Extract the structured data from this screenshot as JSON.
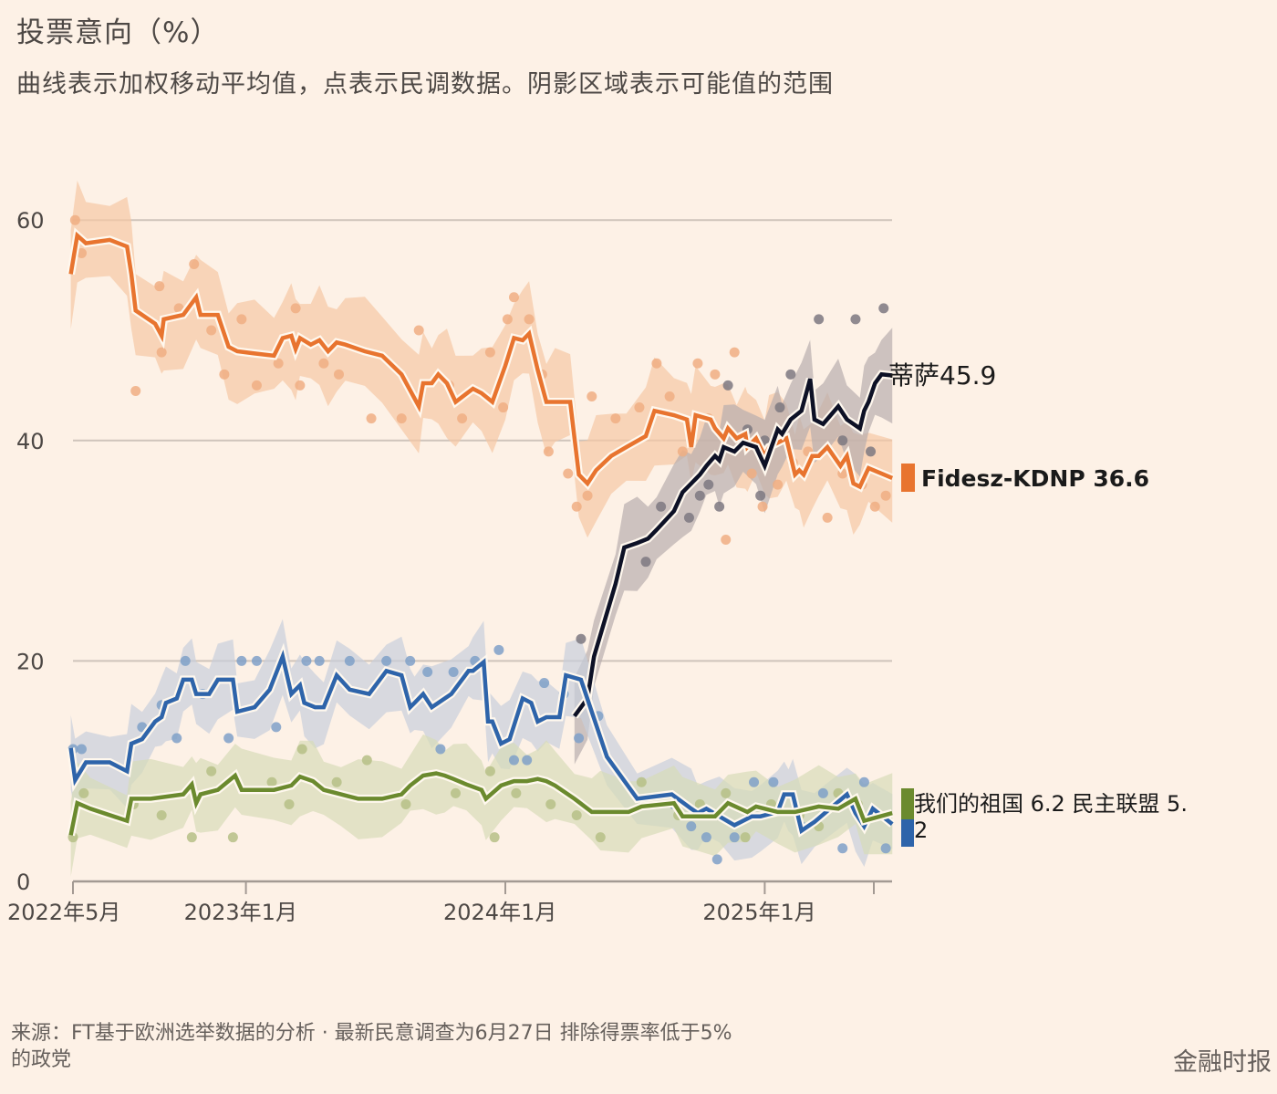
{
  "title": "投票意向（%）",
  "subtitle": "曲线表示加权移动平均值，点表示民调数据。阴影区域表示可能值的范围",
  "source": "来源：FT基于欧洲选举数据的分析 · 最新民意调查为6月27日 排除得票率低于5%的政党",
  "brand": "金融时报",
  "chart_data": {
    "type": "line",
    "title": "投票意向（%）",
    "xlabel": "",
    "ylabel": "",
    "x_unit": "months since 2022-05",
    "xlim": [
      0,
      37.9
    ],
    "ylim": [
      0,
      60
    ],
    "yticks": [
      0,
      20,
      40,
      60
    ],
    "ytick_labels": [
      "0",
      "20",
      "40",
      "60"
    ],
    "xticks": [
      0,
      8,
      20,
      32,
      37
    ],
    "xtick_labels": [
      "2022年5月",
      "2023年1月",
      "2024年1月",
      "2025年1月",
      ""
    ],
    "grid": true,
    "legend": "direct-labels-right",
    "series": [
      {
        "name": "Fidesz-KDNP",
        "label": "Fidesz-KDNP 36.6",
        "last_value": 36.6,
        "color": "#e8742f",
        "band_color": "#f5c8a4",
        "band_halfwidth": 4,
        "x": [
          -0.1,
          0.2,
          0.6,
          1.7,
          2.5,
          2.7,
          2.9,
          3.8,
          4.1,
          4.2,
          5.1,
          5.7,
          5.9,
          6.7,
          7.2,
          7.6,
          8.4,
          9.3,
          9.7,
          10.1,
          10.3,
          10.5,
          11,
          11.4,
          11.8,
          12.2,
          12.6,
          13.5,
          14.3,
          15.2,
          16,
          16.2,
          16.6,
          16.9,
          17.3,
          17.7,
          18.5,
          18.9,
          19.4,
          20,
          20.4,
          20.8,
          21.1,
          21.5,
          21.9,
          22.3,
          23,
          23.4,
          23.8,
          24.2,
          24.9,
          25.6,
          26.5,
          26.9,
          27.8,
          28.4,
          28.6,
          28.8,
          29.5,
          29.7,
          30.1,
          30.3,
          30.7,
          31.1,
          31.2,
          31.6,
          32,
          32.2,
          32.6,
          33,
          33.4,
          33.6,
          33.8,
          34.2,
          34.5,
          34.9,
          35.5,
          35.8,
          36.1,
          36.4,
          36.8,
          37.9
        ],
        "y": [
          55.1,
          58.6,
          57.9,
          58.2,
          57.6,
          55.1,
          51.8,
          50.6,
          49.5,
          51,
          51.4,
          53,
          51.4,
          51.4,
          48.5,
          48.1,
          47.9,
          47.7,
          49.3,
          49.5,
          48.3,
          49.3,
          48.7,
          49.1,
          48.1,
          48.9,
          48.7,
          48.1,
          47.7,
          46,
          43.1,
          45.2,
          45.2,
          46,
          45.2,
          43.5,
          44.7,
          44.3,
          43.5,
          46.8,
          49.3,
          49.1,
          49.7,
          46.4,
          43.5,
          43.5,
          43.5,
          36.9,
          36.1,
          37.3,
          38.6,
          39.4,
          40.4,
          42.7,
          42.3,
          41.9,
          39.4,
          42.3,
          41.9,
          41.1,
          40.2,
          41.1,
          40.2,
          40.6,
          39.4,
          40.2,
          38.6,
          39.4,
          39.8,
          40.2,
          36.9,
          37.3,
          36.9,
          38.6,
          38.6,
          39.4,
          37.7,
          38.6,
          36.1,
          35.8,
          37.5,
          36.6
        ]
      },
      {
        "name": "蒂萨",
        "label": "蒂萨45.9",
        "last_value": 45.9,
        "color": "#0d1126",
        "band_color": "#b8aeae",
        "band_halfwidth": 3.5,
        "x": [
          23.2,
          23.8,
          24.1,
          25.1,
          25.5,
          26.1,
          26.6,
          27,
          27.8,
          28.2,
          28.6,
          29,
          29.3,
          29.7,
          29.9,
          30.1,
          30.6,
          31,
          31.6,
          32,
          32.6,
          32.8,
          33.2,
          33.7,
          34.1,
          34.3,
          34.7,
          35.4,
          35.8,
          36.4,
          36.6,
          36.8,
          37.1,
          37.4,
          37.9
        ],
        "y": [
          15,
          16.6,
          20.4,
          27,
          30.3,
          30.7,
          31.1,
          31.9,
          33.6,
          35.3,
          36.1,
          36.9,
          37.7,
          38.6,
          38.2,
          39.4,
          39,
          39.8,
          39.4,
          37.7,
          41,
          40.6,
          41.9,
          42.7,
          45.6,
          41.9,
          41.5,
          43.1,
          41.9,
          41.1,
          42.7,
          43.5,
          45.2,
          46,
          45.9
        ]
      },
      {
        "name": "民主联盟",
        "label": "民主联盟 5.2",
        "last_value": 5.2,
        "color": "#2e64aa",
        "band_color": "#c8cedb",
        "band_halfwidth": 3,
        "x": [
          -0.1,
          0.1,
          0.6,
          1.7,
          2.5,
          2.7,
          3.2,
          3.8,
          4.1,
          4.3,
          4.8,
          5.1,
          5.5,
          5.7,
          6.3,
          6.7,
          7.4,
          7.6,
          8.4,
          9.1,
          9.7,
          10.1,
          10.5,
          10.7,
          11.2,
          11.6,
          12.2,
          12.8,
          13.7,
          14.5,
          15.2,
          15.6,
          15.8,
          16.2,
          16.6,
          17.5,
          18.3,
          18.5,
          19,
          19.2,
          19.4,
          19.8,
          20.2,
          20.8,
          21.2,
          21.5,
          21.9,
          22.5,
          22.8,
          23.5,
          24.7,
          26.1,
          27.7,
          28.6,
          28.9,
          29.3,
          29.9,
          30.6,
          31.4,
          31.8,
          32.6,
          32.9,
          33.1,
          33.3,
          33.7,
          34.3,
          35.8,
          36.2,
          36.6,
          37,
          37.9
        ],
        "y": [
          12.1,
          9.2,
          10.8,
          10.8,
          10,
          12.5,
          12.9,
          14.5,
          14.9,
          16.2,
          16.6,
          18.3,
          18.3,
          17,
          17,
          18.3,
          18.3,
          15.4,
          15.8,
          17.4,
          20.4,
          17,
          17.8,
          16.2,
          15.8,
          15.8,
          18.7,
          17.4,
          17,
          19.1,
          18.7,
          15.8,
          16.2,
          17,
          15.8,
          17,
          19.1,
          19.1,
          19.9,
          14.5,
          14.5,
          12.5,
          12.9,
          16.6,
          16.2,
          14.5,
          14.9,
          14.9,
          18.7,
          18.3,
          11.3,
          7.5,
          7.9,
          6.6,
          6.2,
          6.6,
          5.9,
          5.1,
          5.9,
          5.9,
          6.3,
          7.9,
          7.9,
          7.9,
          4.6,
          5.4,
          7.9,
          6.2,
          5,
          6.6,
          5.2
        ]
      },
      {
        "name": "我们的祖国",
        "label": "我们的祖国 6.2",
        "last_value": 6.2,
        "color": "#6b8a2e",
        "band_color": "#d7dbb8",
        "band_halfwidth": 3,
        "x": [
          -0.1,
          0.2,
          0.8,
          2.5,
          2.7,
          3.6,
          5.1,
          5.5,
          5.7,
          5.9,
          6.7,
          7.5,
          7.8,
          9.3,
          10.1,
          10.5,
          11.1,
          11.6,
          12.4,
          13.2,
          14.3,
          15.2,
          15.6,
          16.2,
          16.8,
          17.2,
          17.6,
          18.2,
          18.9,
          19.1,
          19.8,
          20.4,
          21,
          21.5,
          21.9,
          22.3,
          23.2,
          24,
          24.4,
          25.7,
          26.3,
          27.8,
          28.2,
          29.7,
          30.3,
          31.2,
          31.6,
          32.6,
          33.4,
          34.5,
          35.4,
          36.2,
          36.6,
          37.9
        ],
        "y": [
          4.2,
          7.1,
          6.6,
          5.5,
          7.5,
          7.5,
          7.9,
          8.8,
          7.1,
          7.9,
          8.3,
          9.6,
          8.3,
          8.3,
          8.7,
          9.5,
          9.1,
          8.3,
          7.9,
          7.5,
          7.5,
          7.9,
          8.7,
          9.6,
          9.8,
          9.6,
          9.3,
          8.8,
          8.3,
          7.5,
          8.7,
          9.1,
          9.1,
          9.3,
          9.1,
          8.7,
          7.5,
          6.3,
          6.3,
          6.3,
          6.8,
          7.1,
          5.9,
          5.9,
          7.1,
          6.3,
          6.8,
          6.3,
          6.3,
          6.8,
          6.6,
          7.5,
          5.5,
          6.2
        ]
      }
    ],
    "polls": {
      "Fidesz-KDNP": [
        [
          0.1,
          60
        ],
        [
          0.4,
          57
        ],
        [
          2.9,
          44.5
        ],
        [
          4,
          54
        ],
        [
          4.1,
          48
        ],
        [
          4.9,
          52
        ],
        [
          5.6,
          56
        ],
        [
          6.4,
          50
        ],
        [
          7,
          46
        ],
        [
          7.8,
          51
        ],
        [
          8.5,
          45
        ],
        [
          9.5,
          47
        ],
        [
          10.3,
          52
        ],
        [
          10.5,
          45
        ],
        [
          11.6,
          47
        ],
        [
          12.3,
          46
        ],
        [
          13.8,
          42
        ],
        [
          15.2,
          42
        ],
        [
          16,
          50
        ],
        [
          17.4,
          45
        ],
        [
          18,
          42
        ],
        [
          19.3,
          48
        ],
        [
          19.9,
          43
        ],
        [
          20.1,
          51
        ],
        [
          20.4,
          53
        ],
        [
          21.1,
          51
        ],
        [
          21.7,
          46
        ],
        [
          22,
          39
        ],
        [
          22.9,
          37
        ],
        [
          23.3,
          34
        ],
        [
          23.8,
          35
        ],
        [
          24,
          44
        ],
        [
          25.1,
          42
        ],
        [
          26.2,
          43
        ],
        [
          27,
          47
        ],
        [
          27.6,
          44
        ],
        [
          28.2,
          39
        ],
        [
          28.9,
          47
        ],
        [
          29.4,
          42
        ],
        [
          29.7,
          46
        ],
        [
          30.2,
          31
        ],
        [
          30.6,
          48
        ],
        [
          30.9,
          40
        ],
        [
          31.4,
          37
        ],
        [
          31.9,
          34
        ],
        [
          32.6,
          36
        ],
        [
          33.3,
          38
        ],
        [
          34,
          39
        ],
        [
          34.9,
          33
        ],
        [
          35.6,
          37
        ],
        [
          36.5,
          36
        ],
        [
          37.1,
          34
        ],
        [
          37.6,
          35
        ]
      ],
      "蒂萨": [
        [
          23.5,
          22
        ],
        [
          26.5,
          29
        ],
        [
          27.2,
          34
        ],
        [
          28.5,
          33
        ],
        [
          29,
          35
        ],
        [
          29.4,
          36
        ],
        [
          29.9,
          34
        ],
        [
          30.3,
          45
        ],
        [
          31.2,
          41
        ],
        [
          31.8,
          35
        ],
        [
          32,
          40
        ],
        [
          32.7,
          43
        ],
        [
          33.2,
          46
        ],
        [
          34.5,
          51
        ],
        [
          35.6,
          40
        ],
        [
          36.2,
          51
        ],
        [
          36.9,
          39
        ],
        [
          37.5,
          52
        ]
      ],
      "民主联盟": [
        [
          0,
          12
        ],
        [
          0.4,
          12
        ],
        [
          3.2,
          14
        ],
        [
          4.1,
          16
        ],
        [
          4.8,
          13
        ],
        [
          5.2,
          20
        ],
        [
          6,
          17
        ],
        [
          7.2,
          13
        ],
        [
          7.8,
          20
        ],
        [
          8.5,
          20
        ],
        [
          9.4,
          14
        ],
        [
          10.8,
          20
        ],
        [
          11.4,
          20
        ],
        [
          12.8,
          20
        ],
        [
          14.5,
          20
        ],
        [
          15.6,
          20
        ],
        [
          16.4,
          19
        ],
        [
          17,
          12
        ],
        [
          17.6,
          19
        ],
        [
          18.6,
          20
        ],
        [
          19.7,
          21
        ],
        [
          20.4,
          11
        ],
        [
          21,
          11
        ],
        [
          21.8,
          18
        ],
        [
          22.7,
          17
        ],
        [
          23.4,
          13
        ],
        [
          24.3,
          15
        ],
        [
          27.8,
          7
        ],
        [
          28.6,
          5
        ],
        [
          29.3,
          4
        ],
        [
          29.8,
          2
        ],
        [
          30.6,
          4
        ],
        [
          31.5,
          9
        ],
        [
          32.4,
          9
        ],
        [
          33.7,
          5
        ],
        [
          34.7,
          8
        ],
        [
          35.6,
          3
        ],
        [
          36.6,
          9
        ],
        [
          37.6,
          3
        ]
      ],
      "我们的祖国": [
        [
          0,
          4
        ],
        [
          0.5,
          8
        ],
        [
          2.8,
          7
        ],
        [
          4.1,
          6
        ],
        [
          5.5,
          4
        ],
        [
          6.4,
          10
        ],
        [
          7.4,
          4
        ],
        [
          9.2,
          9
        ],
        [
          10,
          7
        ],
        [
          10.6,
          12
        ],
        [
          12.2,
          9
        ],
        [
          13.6,
          11
        ],
        [
          15.4,
          7
        ],
        [
          17.7,
          8
        ],
        [
          19.3,
          10
        ],
        [
          19.5,
          4
        ],
        [
          20.5,
          8
        ],
        [
          22.1,
          7
        ],
        [
          23.3,
          6
        ],
        [
          24.4,
          4
        ],
        [
          26.3,
          9
        ],
        [
          28,
          6
        ],
        [
          29,
          7
        ],
        [
          30.2,
          8
        ],
        [
          31.1,
          4
        ],
        [
          32.3,
          7
        ],
        [
          33.6,
          6
        ],
        [
          34.5,
          5
        ],
        [
          35.4,
          8
        ],
        [
          36.3,
          7
        ],
        [
          37.3,
          6
        ]
      ]
    }
  }
}
